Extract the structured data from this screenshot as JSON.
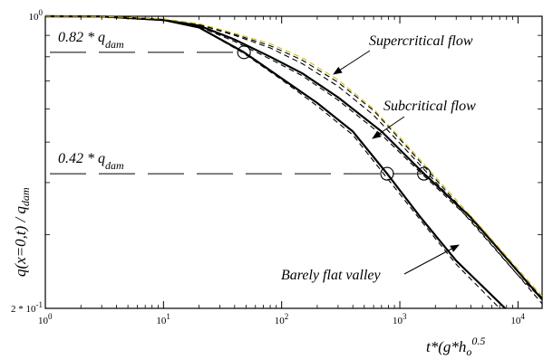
{
  "chart_data": {
    "type": "line",
    "title": "",
    "xlabel": "t*(g*h",
    "xlabel_sub": "o",
    "xlabel_sup": "0.5",
    "ylabel": "q(x=0,t) / q",
    "ylabel_sub": "dam",
    "xscale": "log",
    "yscale": "log",
    "xlim": [
      1,
      16000
    ],
    "ylim": [
      0.2,
      1.0
    ],
    "x_ticks": [
      {
        "value": 1,
        "base": "10",
        "exp": "0"
      },
      {
        "value": 10,
        "base": "10",
        "exp": "1"
      },
      {
        "value": 100,
        "base": "10",
        "exp": "2"
      },
      {
        "value": 1000,
        "base": "10",
        "exp": "3"
      },
      {
        "value": 10000,
        "base": "10",
        "exp": "4"
      }
    ],
    "y_ticks": [
      {
        "value": 1.0,
        "label": "10",
        "exp": "0"
      },
      {
        "value": 0.2,
        "label": "2 * 10",
        "exp": "-1"
      }
    ],
    "reference_lines": [
      {
        "y": 0.82,
        "label": "0.82 * q",
        "label_sub": "dam"
      },
      {
        "y": 0.42,
        "label": "0.42 * q",
        "label_sub": "dam"
      }
    ],
    "markers": [
      {
        "x": 48,
        "y": 0.82
      },
      {
        "x": 780,
        "y": 0.42
      },
      {
        "x": 1600,
        "y": 0.42
      }
    ],
    "series": [
      {
        "style": "solid",
        "color": "#000000",
        "x": [
          1,
          3,
          10,
          20,
          48,
          100,
          200,
          400,
          780,
          1500,
          3000,
          7800
        ],
        "y": [
          1.0,
          0.999,
          0.98,
          0.94,
          0.82,
          0.71,
          0.62,
          0.53,
          0.42,
          0.33,
          0.26,
          0.2
        ]
      },
      {
        "style": "solid",
        "color": "#000000",
        "x": [
          1,
          3,
          10,
          20,
          40,
          80,
          150,
          300,
          700,
          1600,
          4000,
          10000,
          16000
        ],
        "y": [
          1.0,
          0.999,
          0.98,
          0.95,
          0.88,
          0.8,
          0.73,
          0.64,
          0.53,
          0.42,
          0.33,
          0.245,
          0.21
        ]
      },
      {
        "style": "dashed",
        "color": "#000000",
        "x": [
          1,
          3,
          10,
          20,
          48,
          100,
          200,
          400,
          780,
          1500,
          3000,
          7000
        ],
        "y": [
          1.0,
          0.999,
          0.98,
          0.94,
          0.815,
          0.705,
          0.61,
          0.52,
          0.41,
          0.325,
          0.255,
          0.2
        ]
      },
      {
        "style": "dashed",
        "color": "#000000",
        "x": [
          1,
          3,
          10,
          20,
          40,
          80,
          150,
          300,
          700,
          1600,
          4000,
          10000,
          16000
        ],
        "y": [
          1.0,
          0.999,
          0.98,
          0.945,
          0.87,
          0.79,
          0.72,
          0.63,
          0.52,
          0.415,
          0.325,
          0.24,
          0.205
        ]
      },
      {
        "style": "dashed",
        "color": "#000000",
        "x": [
          1,
          3,
          10,
          20,
          40,
          80,
          150,
          300,
          600,
          1200,
          2400,
          5000,
          10000,
          16000
        ],
        "y": [
          1.0,
          0.999,
          0.985,
          0.955,
          0.9,
          0.84,
          0.77,
          0.68,
          0.58,
          0.47,
          0.38,
          0.3,
          0.24,
          0.21
        ]
      },
      {
        "style": "dashed",
        "color": "#000000",
        "x": [
          1,
          3,
          10,
          20,
          40,
          80,
          150,
          300,
          600,
          1200,
          2400,
          5000,
          10000,
          16000
        ],
        "y": [
          1.0,
          0.999,
          0.985,
          0.958,
          0.905,
          0.85,
          0.785,
          0.695,
          0.595,
          0.48,
          0.385,
          0.305,
          0.245,
          0.212
        ]
      },
      {
        "style": "dashed",
        "color": "#d4c200",
        "x": [
          1,
          3,
          10,
          20,
          40,
          80,
          150,
          300,
          600,
          1200,
          2400,
          5000,
          10000,
          16000
        ],
        "y": [
          1.0,
          0.999,
          0.985,
          0.96,
          0.91,
          0.86,
          0.795,
          0.705,
          0.6,
          0.485,
          0.39,
          0.31,
          0.248,
          0.214
        ]
      }
    ],
    "annotations": [
      {
        "text": "Supercritical flow",
        "arrow_from": [
          480,
          170
        ],
        "arrow_to": [
          370,
          82
        ]
      },
      {
        "text": "Subcritical flow",
        "arrow_from": [
          470,
          300
        ],
        "arrow_to": [
          400,
          170
        ]
      },
      {
        "text": "Barely flat valley",
        "arrow_from": [
          1100,
          0.255
        ],
        "arrow_to": [
          2600,
          0.29
        ]
      }
    ]
  }
}
